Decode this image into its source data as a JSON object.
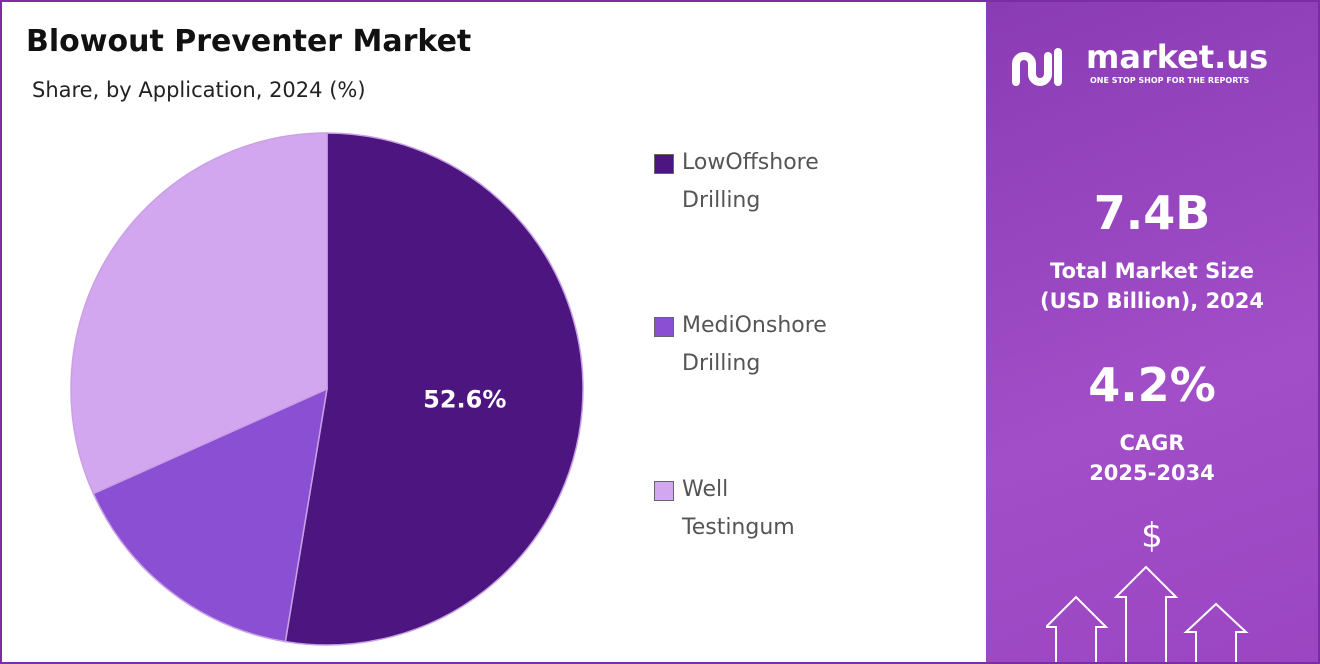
{
  "chart_data": {
    "type": "pie",
    "title": "Blowout Preventer Market",
    "subtitle": "Share, by Application, 2024 (%)",
    "categories": [
      "LowOffshore Drilling",
      "MediOnshore Drilling",
      "Well Testingum"
    ],
    "values": [
      52.6,
      15.7,
      31.7
    ],
    "value_labels": [
      "52.6%",
      null,
      null
    ],
    "colors": [
      "#4d1580",
      "#8a4fd2",
      "#d3a7ef"
    ]
  },
  "panel": {
    "brand": "market.us",
    "tagline": "ONE STOP SHOP FOR THE REPORTS",
    "market_size": "7.4B",
    "market_size_label": "Total Market Size (USD Billion), 2024",
    "cagr": "4.2%",
    "cagr_label": "CAGR 2025-2034",
    "currency": "$"
  }
}
